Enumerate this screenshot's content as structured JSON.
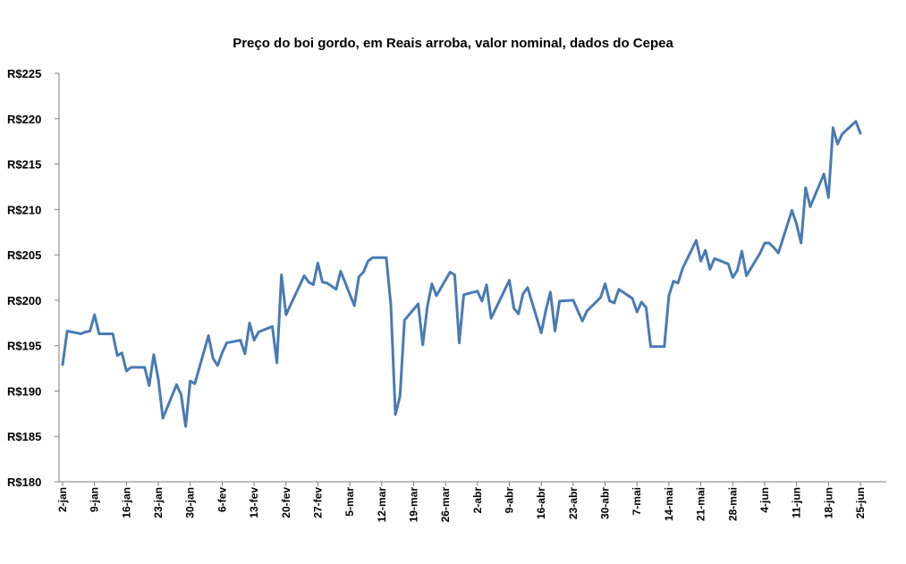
{
  "chart_data": {
    "type": "line",
    "title": "Preço do boi gordo,  em Reais arroba, valor nominal, dados do Cepea",
    "xlabel": "",
    "ylabel": "",
    "ylim": [
      180,
      225
    ],
    "y_ticks": [
      "R$180",
      "R$185",
      "R$190",
      "R$195",
      "R$200",
      "R$205",
      "R$210",
      "R$215",
      "R$220",
      "R$225"
    ],
    "x_ticks": [
      "2-jan",
      "9-jan",
      "16-jan",
      "23-jan",
      "30-jan",
      "6-fev",
      "13-fev",
      "20-fev",
      "27-fev",
      "5-mar",
      "12-mar",
      "19-mar",
      "26-mar",
      "2-abr",
      "9-abr",
      "16-abr",
      "23-abr",
      "30-abr",
      "7-mai",
      "14-mai",
      "21-mai",
      "28-mai",
      "4-jun",
      "11-jun",
      "18-jun",
      "25-jun"
    ],
    "grid": false,
    "line_color": "#4a7ab5",
    "series": [
      {
        "points": [
          [
            0,
            192.9
          ],
          [
            1,
            196.6
          ],
          [
            3,
            196.4
          ],
          [
            4,
            196.3
          ],
          [
            5,
            196.5
          ],
          [
            6,
            196.6
          ],
          [
            7,
            198.4
          ],
          [
            8,
            196.3
          ],
          [
            11,
            196.3
          ],
          [
            12,
            193.9
          ],
          [
            13,
            194.2
          ],
          [
            14,
            192.2
          ],
          [
            15,
            192.6
          ],
          [
            18,
            192.6
          ],
          [
            19,
            190.6
          ],
          [
            20,
            194.0
          ],
          [
            21,
            191.3
          ],
          [
            22,
            187.0
          ],
          [
            25,
            190.7
          ],
          [
            26,
            189.6
          ],
          [
            27,
            186.1
          ],
          [
            28,
            191.1
          ],
          [
            29,
            190.8
          ],
          [
            32,
            196.1
          ],
          [
            33,
            193.6
          ],
          [
            34,
            192.8
          ],
          [
            35,
            194.2
          ],
          [
            36,
            195.3
          ],
          [
            39,
            195.6
          ],
          [
            40,
            194.1
          ],
          [
            41,
            197.5
          ],
          [
            42,
            195.6
          ],
          [
            43,
            196.5
          ],
          [
            46,
            197.1
          ],
          [
            47,
            193.1
          ],
          [
            48,
            202.8
          ],
          [
            49,
            198.4
          ],
          [
            53,
            202.7
          ],
          [
            54,
            202.0
          ],
          [
            55,
            201.7
          ],
          [
            56,
            204.1
          ],
          [
            57,
            202.0
          ],
          [
            58,
            201.9
          ],
          [
            60,
            201.2
          ],
          [
            61,
            203.2
          ],
          [
            64,
            199.4
          ],
          [
            65,
            202.6
          ],
          [
            66,
            203.1
          ],
          [
            67,
            204.3
          ],
          [
            68,
            204.7
          ],
          [
            71,
            204.7
          ],
          [
            72,
            199.5
          ],
          [
            73,
            187.4
          ],
          [
            74,
            189.4
          ],
          [
            75,
            197.8
          ],
          [
            78,
            199.6
          ],
          [
            79,
            195.1
          ],
          [
            80,
            199.3
          ],
          [
            81,
            201.8
          ],
          [
            82,
            200.5
          ],
          [
            85,
            203.1
          ],
          [
            86,
            202.8
          ],
          [
            87,
            195.3
          ],
          [
            88,
            200.6
          ],
          [
            91,
            201.0
          ],
          [
            92,
            199.9
          ],
          [
            93,
            201.7
          ],
          [
            94,
            198.0
          ],
          [
            98,
            202.2
          ],
          [
            99,
            199.1
          ],
          [
            100,
            198.5
          ],
          [
            101,
            200.7
          ],
          [
            102,
            201.4
          ],
          [
            105,
            196.4
          ],
          [
            106,
            198.9
          ],
          [
            107,
            200.9
          ],
          [
            108,
            196.6
          ],
          [
            109,
            199.9
          ],
          [
            112,
            200.0
          ],
          [
            114,
            197.7
          ],
          [
            115,
            198.8
          ],
          [
            118,
            200.3
          ],
          [
            119,
            201.8
          ],
          [
            120,
            199.9
          ],
          [
            121,
            199.7
          ],
          [
            122,
            201.2
          ],
          [
            125,
            200.2
          ],
          [
            126,
            198.7
          ],
          [
            127,
            199.8
          ],
          [
            128,
            199.2
          ],
          [
            129,
            194.9
          ],
          [
            132,
            194.9
          ],
          [
            133,
            200.5
          ],
          [
            134,
            202.1
          ],
          [
            135,
            201.9
          ],
          [
            136,
            203.5
          ],
          [
            139,
            206.6
          ],
          [
            140,
            204.3
          ],
          [
            141,
            205.5
          ],
          [
            142,
            203.4
          ],
          [
            143,
            204.6
          ],
          [
            146,
            204.0
          ],
          [
            147,
            202.5
          ],
          [
            148,
            203.3
          ],
          [
            149,
            205.4
          ],
          [
            150,
            202.7
          ],
          [
            153,
            205.2
          ],
          [
            154,
            206.3
          ],
          [
            155,
            206.3
          ],
          [
            156,
            205.8
          ],
          [
            157,
            205.2
          ],
          [
            160,
            209.9
          ],
          [
            161,
            208.4
          ],
          [
            162,
            206.3
          ],
          [
            163,
            212.4
          ],
          [
            164,
            210.3
          ],
          [
            167,
            213.9
          ],
          [
            168,
            211.3
          ],
          [
            169,
            219.0
          ],
          [
            170,
            217.2
          ],
          [
            171,
            218.3
          ],
          [
            174,
            219.7
          ],
          [
            175,
            218.4
          ]
        ]
      }
    ]
  }
}
